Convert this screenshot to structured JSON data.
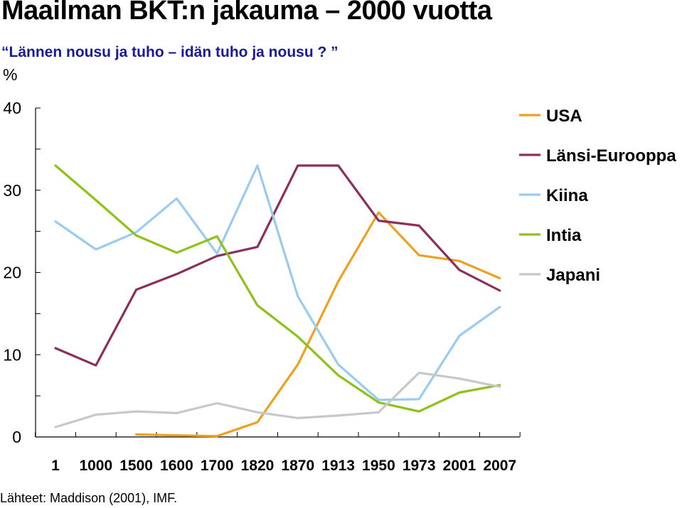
{
  "header": {
    "title": "Maailman BKT:n jakauma – 2000 vuotta",
    "subtitle": "“Lännen nousu ja tuho – idän tuho ja nousu ? ”",
    "unit": "%"
  },
  "footer": {
    "source": "Lähteet: Maddison (2001), IMF."
  },
  "chart_data": {
    "type": "line",
    "title": "Maailman BKT:n jakauma – 2000 vuotta",
    "subtitle": "“Lännen nousu ja tuho – idän tuho ja nousu ? ”",
    "xlabel": "",
    "ylabel": "%",
    "ylim": [
      0,
      40
    ],
    "yticks": [
      0,
      10,
      20,
      30,
      40
    ],
    "grid": false,
    "legend_position": "right",
    "categories": [
      "1",
      "1000",
      "1500",
      "1600",
      "1700",
      "1820",
      "1870",
      "1913",
      "1950",
      "1973",
      "2001",
      "2007"
    ],
    "series": [
      {
        "name": "USA",
        "color": "#f0a020",
        "values": [
          null,
          null,
          0.3,
          0.2,
          0.1,
          1.8,
          8.8,
          18.9,
          27.3,
          22.1,
          21.4,
          19.3
        ]
      },
      {
        "name": "Länsi-Eurooppa",
        "color": "#8b2f5c",
        "values": [
          10.8,
          8.7,
          17.9,
          19.8,
          22.0,
          23.1,
          33.0,
          33.0,
          26.3,
          25.7,
          20.3,
          17.8
        ]
      },
      {
        "name": "Kiina",
        "color": "#99ccee",
        "values": [
          26.2,
          22.8,
          24.9,
          29.0,
          22.3,
          33.0,
          17.1,
          8.8,
          4.5,
          4.6,
          12.3,
          15.8
        ]
      },
      {
        "name": "Intia",
        "color": "#8cc21a",
        "values": [
          33.0,
          28.8,
          24.5,
          22.4,
          24.4,
          16.0,
          12.2,
          7.5,
          4.2,
          3.1,
          5.4,
          6.3
        ]
      },
      {
        "name": "Japani",
        "color": "#c8c8c8",
        "values": [
          1.2,
          2.7,
          3.1,
          2.9,
          4.1,
          3.0,
          2.3,
          2.6,
          3.0,
          7.8,
          7.1,
          6.1
        ]
      }
    ]
  }
}
